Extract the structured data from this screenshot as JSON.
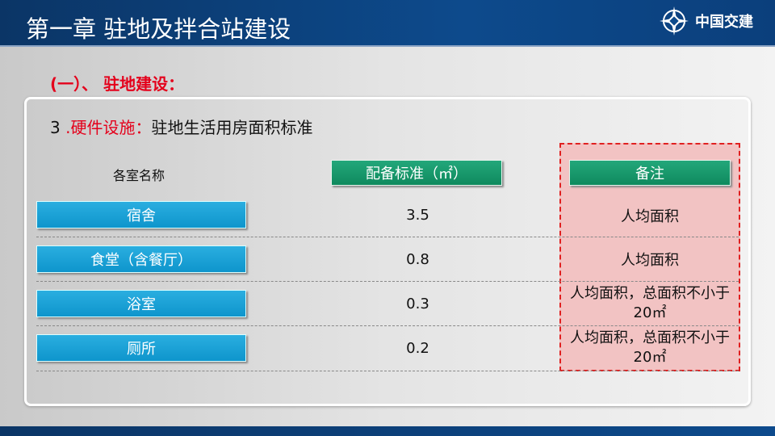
{
  "header": {
    "title": "第一章 驻地及拌合站建设",
    "logo_name": "中国交建"
  },
  "subtitle": "(一）、 驻地建设：",
  "section": {
    "number": "3",
    "label": ".硬件设施：",
    "text": "驻地生活用房面积标准"
  },
  "table": {
    "columns": [
      "各室名称",
      "配备标准（㎡）",
      "备注"
    ],
    "rows": [
      {
        "name": "宿舍",
        "value": "3.5",
        "note": "人均面积"
      },
      {
        "name": "食堂（含餐厅）",
        "value": "0.8",
        "note": "人均面积"
      },
      {
        "name": "浴室",
        "value": "0.3",
        "note": "人均面积，总面积不小于20㎡"
      },
      {
        "name": "厕所",
        "value": "0.2",
        "note": "人均面积，总面积不小于20㎡"
      }
    ]
  },
  "colors": {
    "header": "#0d4a8c",
    "accent_red": "#e4001b",
    "green": "#119068",
    "blue": "#1aa2d8",
    "note_bg": "#f2c3c3"
  }
}
